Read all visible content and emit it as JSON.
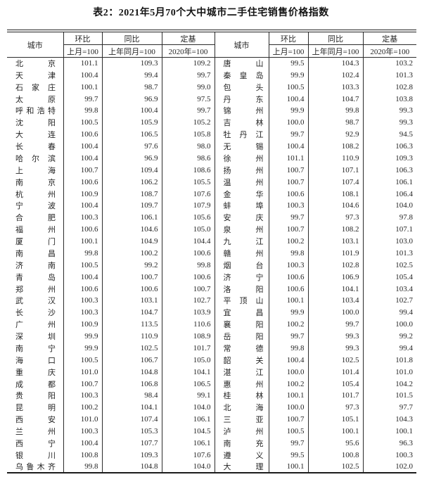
{
  "title": "表2：2021年5月70个大中城市二手住宅销售价格指数",
  "header": {
    "city": "城市",
    "mom": "环比",
    "mom_base": "上月=100",
    "yoy": "同比",
    "yoy_base": "上年同月=100",
    "fixed": "定基",
    "fixed_base": "2020年=100"
  },
  "chart_data": {
    "type": "table",
    "title": "表2：2021年5月70个大中城市二手住宅销售价格指数",
    "columns": [
      "城市",
      "环比(上月=100)",
      "同比(上年同月=100)",
      "定基(2020年=100)"
    ],
    "note": "70 cities split into left and right halves of the table"
  },
  "table": {
    "left_rows": [
      {
        "city": "北京",
        "mom": "101.1",
        "yoy": "109.3",
        "fixed": "109.2"
      },
      {
        "city": "天津",
        "mom": "100.4",
        "yoy": "99.4",
        "fixed": "99.7"
      },
      {
        "city": "石家庄",
        "mom": "100.1",
        "yoy": "98.7",
        "fixed": "99.0"
      },
      {
        "city": "太原",
        "mom": "99.7",
        "yoy": "96.9",
        "fixed": "97.5"
      },
      {
        "city": "呼和浩特",
        "mom": "99.8",
        "yoy": "100.4",
        "fixed": "99.7"
      },
      {
        "city": "沈阳",
        "mom": "100.5",
        "yoy": "105.9",
        "fixed": "105.2"
      },
      {
        "city": "大连",
        "mom": "100.6",
        "yoy": "106.5",
        "fixed": "105.8"
      },
      {
        "city": "长春",
        "mom": "100.4",
        "yoy": "97.6",
        "fixed": "98.0"
      },
      {
        "city": "哈尔滨",
        "mom": "100.4",
        "yoy": "96.9",
        "fixed": "98.6"
      },
      {
        "city": "上海",
        "mom": "100.7",
        "yoy": "109.4",
        "fixed": "108.6"
      },
      {
        "city": "南京",
        "mom": "100.6",
        "yoy": "106.2",
        "fixed": "105.5"
      },
      {
        "city": "杭州",
        "mom": "100.9",
        "yoy": "108.7",
        "fixed": "107.6"
      },
      {
        "city": "宁波",
        "mom": "100.4",
        "yoy": "109.7",
        "fixed": "107.9"
      },
      {
        "city": "合肥",
        "mom": "100.3",
        "yoy": "106.1",
        "fixed": "105.6"
      },
      {
        "city": "福州",
        "mom": "100.6",
        "yoy": "104.6",
        "fixed": "105.0"
      },
      {
        "city": "厦门",
        "mom": "100.1",
        "yoy": "104.9",
        "fixed": "104.4"
      },
      {
        "city": "南昌",
        "mom": "99.8",
        "yoy": "100.2",
        "fixed": "100.6"
      },
      {
        "city": "济南",
        "mom": "100.5",
        "yoy": "99.2",
        "fixed": "99.8"
      },
      {
        "city": "青岛",
        "mom": "100.4",
        "yoy": "100.7",
        "fixed": "100.6"
      },
      {
        "city": "郑州",
        "mom": "100.6",
        "yoy": "100.6",
        "fixed": "100.7"
      },
      {
        "city": "武汉",
        "mom": "100.3",
        "yoy": "103.1",
        "fixed": "102.7"
      },
      {
        "city": "长沙",
        "mom": "100.3",
        "yoy": "104.7",
        "fixed": "103.9"
      },
      {
        "city": "广州",
        "mom": "100.9",
        "yoy": "113.5",
        "fixed": "110.6"
      },
      {
        "city": "深圳",
        "mom": "99.9",
        "yoy": "110.9",
        "fixed": "108.9"
      },
      {
        "city": "南宁",
        "mom": "99.9",
        "yoy": "102.5",
        "fixed": "101.7"
      },
      {
        "city": "海口",
        "mom": "100.5",
        "yoy": "106.7",
        "fixed": "105.0"
      },
      {
        "city": "重庆",
        "mom": "101.0",
        "yoy": "104.8",
        "fixed": "104.1"
      },
      {
        "city": "成都",
        "mom": "100.7",
        "yoy": "106.8",
        "fixed": "106.5"
      },
      {
        "city": "贵阳",
        "mom": "100.3",
        "yoy": "98.4",
        "fixed": "99.1"
      },
      {
        "city": "昆明",
        "mom": "100.2",
        "yoy": "104.1",
        "fixed": "104.0"
      },
      {
        "city": "西安",
        "mom": "101.0",
        "yoy": "107.4",
        "fixed": "106.1"
      },
      {
        "city": "兰州",
        "mom": "100.3",
        "yoy": "105.3",
        "fixed": "104.5"
      },
      {
        "city": "西宁",
        "mom": "100.4",
        "yoy": "107.7",
        "fixed": "106.1"
      },
      {
        "city": "银川",
        "mom": "100.8",
        "yoy": "109.3",
        "fixed": "107.6"
      },
      {
        "city": "乌鲁木齐",
        "mom": "99.8",
        "yoy": "104.8",
        "fixed": "104.0"
      }
    ],
    "right_rows": [
      {
        "city": "唐山",
        "mom": "99.5",
        "yoy": "104.3",
        "fixed": "103.2"
      },
      {
        "city": "秦皇岛",
        "mom": "99.9",
        "yoy": "102.4",
        "fixed": "101.3"
      },
      {
        "city": "包头",
        "mom": "100.5",
        "yoy": "103.3",
        "fixed": "102.8"
      },
      {
        "city": "丹东",
        "mom": "100.4",
        "yoy": "104.7",
        "fixed": "103.8"
      },
      {
        "city": "锦州",
        "mom": "99.9",
        "yoy": "99.8",
        "fixed": "99.3"
      },
      {
        "city": "吉林",
        "mom": "100.0",
        "yoy": "98.7",
        "fixed": "99.3"
      },
      {
        "city": "牡丹江",
        "mom": "99.7",
        "yoy": "92.9",
        "fixed": "94.5"
      },
      {
        "city": "无锡",
        "mom": "100.4",
        "yoy": "108.2",
        "fixed": "106.3"
      },
      {
        "city": "徐州",
        "mom": "101.1",
        "yoy": "110.9",
        "fixed": "109.3"
      },
      {
        "city": "扬州",
        "mom": "100.7",
        "yoy": "107.1",
        "fixed": "106.3"
      },
      {
        "city": "温州",
        "mom": "100.7",
        "yoy": "107.4",
        "fixed": "106.1"
      },
      {
        "city": "金华",
        "mom": "100.6",
        "yoy": "108.1",
        "fixed": "106.4"
      },
      {
        "city": "蚌埠",
        "mom": "100.3",
        "yoy": "104.6",
        "fixed": "104.0"
      },
      {
        "city": "安庆",
        "mom": "99.7",
        "yoy": "97.3",
        "fixed": "97.8"
      },
      {
        "city": "泉州",
        "mom": "100.7",
        "yoy": "108.2",
        "fixed": "107.1"
      },
      {
        "city": "九江",
        "mom": "100.2",
        "yoy": "103.1",
        "fixed": "103.0"
      },
      {
        "city": "赣州",
        "mom": "99.8",
        "yoy": "101.9",
        "fixed": "101.3"
      },
      {
        "city": "烟台",
        "mom": "100.3",
        "yoy": "102.8",
        "fixed": "102.5"
      },
      {
        "city": "济宁",
        "mom": "100.6",
        "yoy": "106.9",
        "fixed": "105.4"
      },
      {
        "city": "洛阳",
        "mom": "100.6",
        "yoy": "104.1",
        "fixed": "103.4"
      },
      {
        "city": "平顶山",
        "mom": "100.1",
        "yoy": "103.4",
        "fixed": "102.7"
      },
      {
        "city": "宜昌",
        "mom": "99.9",
        "yoy": "100.0",
        "fixed": "99.4"
      },
      {
        "city": "襄阳",
        "mom": "100.2",
        "yoy": "99.7",
        "fixed": "100.0"
      },
      {
        "city": "岳阳",
        "mom": "99.7",
        "yoy": "99.3",
        "fixed": "99.2"
      },
      {
        "city": "常德",
        "mom": "99.8",
        "yoy": "99.3",
        "fixed": "99.4"
      },
      {
        "city": "韶关",
        "mom": "100.4",
        "yoy": "102.5",
        "fixed": "101.8"
      },
      {
        "city": "湛江",
        "mom": "100.0",
        "yoy": "101.4",
        "fixed": "101.0"
      },
      {
        "city": "惠州",
        "mom": "100.2",
        "yoy": "105.4",
        "fixed": "104.2"
      },
      {
        "city": "桂林",
        "mom": "100.1",
        "yoy": "101.7",
        "fixed": "101.5"
      },
      {
        "city": "北海",
        "mom": "100.0",
        "yoy": "97.3",
        "fixed": "97.7"
      },
      {
        "city": "三亚",
        "mom": "100.7",
        "yoy": "105.1",
        "fixed": "104.3"
      },
      {
        "city": "泸州",
        "mom": "100.5",
        "yoy": "100.1",
        "fixed": "100.1"
      },
      {
        "city": "南充",
        "mom": "99.7",
        "yoy": "95.6",
        "fixed": "96.3"
      },
      {
        "city": "遵义",
        "mom": "99.5",
        "yoy": "100.8",
        "fixed": "100.3"
      },
      {
        "city": "大理",
        "mom": "100.1",
        "yoy": "102.5",
        "fixed": "102.0"
      }
    ]
  },
  "colors": {
    "text": "#242424",
    "border": "#2b2b2b",
    "background": "#ffffff"
  }
}
